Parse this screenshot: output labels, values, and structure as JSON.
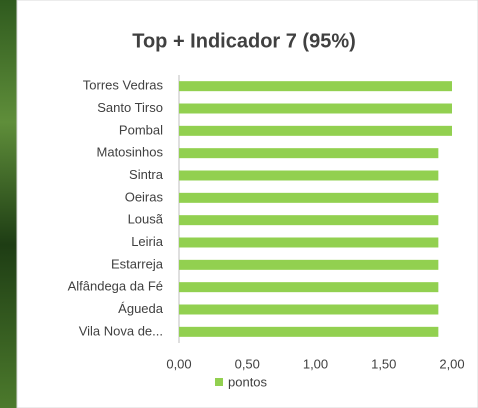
{
  "chart_data": {
    "type": "bar",
    "orientation": "horizontal",
    "title": "Top + Indicador 7 (95%)",
    "categories": [
      "Torres Vedras",
      "Santo Tirso",
      "Pombal",
      "Matosinhos",
      "Sintra",
      "Oeiras",
      "Lousã",
      "Leiria",
      "Estarreja",
      "Alfândega da Fé",
      "Águeda",
      "Vila Nova de..."
    ],
    "series": [
      {
        "name": "pontos",
        "color": "#92d050",
        "values": [
          2.0,
          2.0,
          2.0,
          1.9,
          1.9,
          1.9,
          1.9,
          1.9,
          1.9,
          1.9,
          1.9,
          1.9
        ]
      }
    ],
    "xlim": [
      0,
      2
    ],
    "xticks": [
      {
        "value": 0,
        "label": "0,00"
      },
      {
        "value": 0.5,
        "label": "0,50"
      },
      {
        "value": 1,
        "label": "1,00"
      },
      {
        "value": 1.5,
        "label": "1,50"
      },
      {
        "value": 2,
        "label": "2,00"
      }
    ],
    "grid": false,
    "legend": "bottom"
  }
}
